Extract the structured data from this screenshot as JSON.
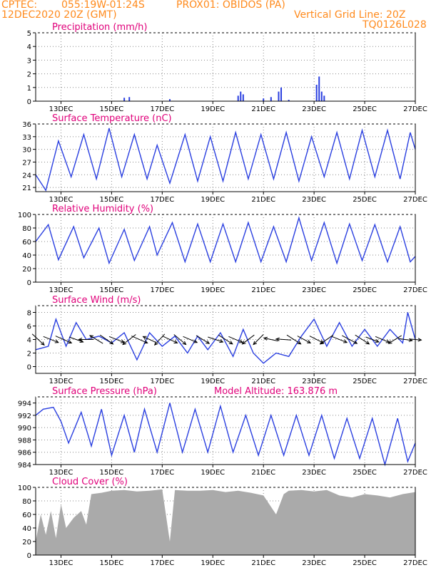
{
  "header": {
    "source": "CPTEC:",
    "coords": "055:19W-01:24S",
    "station": "PROX01: OBIDOS (PA)",
    "datetime": "12DEC2020 20Z (GMT)",
    "grid_note": "Vertical Grid Line: 20Z",
    "code": "TQ0126L028"
  },
  "colors": {
    "header": "#ff8a1c",
    "title": "#e0007a",
    "line": "#2a3fe0",
    "cloud": "#aaaaaa",
    "wind": "#000000"
  },
  "chart_data": [
    {
      "type": "bar",
      "title": "Precipitation (mm/h)",
      "x_ticks": [
        "13DEC",
        "15DEC",
        "17DEC",
        "19DEC",
        "21DEC",
        "23DEC",
        "25DEC",
        "27DEC"
      ],
      "ylim": [
        0,
        5
      ],
      "y_ticks": [
        0,
        1,
        2,
        3,
        4,
        5
      ],
      "grid": true,
      "points": [
        [
          3.5,
          0.25
        ],
        [
          3.7,
          0.3
        ],
        [
          5.3,
          0.15
        ],
        [
          8.0,
          0.4
        ],
        [
          8.1,
          0.7
        ],
        [
          8.2,
          0.5
        ],
        [
          9.0,
          0.2
        ],
        [
          9.3,
          0.3
        ],
        [
          9.6,
          0.7
        ],
        [
          9.7,
          1.0
        ],
        [
          10.0,
          0.1
        ],
        [
          11.1,
          1.2
        ],
        [
          11.2,
          1.8
        ],
        [
          11.3,
          0.7
        ],
        [
          11.4,
          0.4
        ]
      ]
    },
    {
      "type": "line",
      "title": "Surface Temperature (nC)",
      "x_ticks": [
        "13DEC",
        "15DEC",
        "17DEC",
        "19DEC",
        "21DEC",
        "23DEC",
        "25DEC",
        "27DEC"
      ],
      "ylim": [
        20,
        36
      ],
      "y_ticks": [
        21,
        24,
        27,
        30,
        33,
        36
      ],
      "grid": true,
      "points": [
        [
          0.0,
          24.0
        ],
        [
          0.4,
          20.3
        ],
        [
          0.9,
          32.0
        ],
        [
          1.4,
          23.5
        ],
        [
          1.9,
          33.5
        ],
        [
          2.4,
          23.0
        ],
        [
          2.9,
          35.0
        ],
        [
          3.4,
          23.5
        ],
        [
          3.9,
          33.5
        ],
        [
          4.4,
          23.0
        ],
        [
          4.8,
          31.0
        ],
        [
          5.3,
          22.0
        ],
        [
          5.9,
          33.5
        ],
        [
          6.4,
          22.5
        ],
        [
          6.9,
          33.0
        ],
        [
          7.4,
          22.5
        ],
        [
          7.9,
          34.0
        ],
        [
          8.4,
          23.0
        ],
        [
          8.9,
          33.5
        ],
        [
          9.4,
          23.0
        ],
        [
          9.9,
          34.0
        ],
        [
          10.4,
          22.5
        ],
        [
          10.9,
          33.0
        ],
        [
          11.4,
          23.5
        ],
        [
          11.9,
          34.0
        ],
        [
          12.4,
          23.0
        ],
        [
          12.9,
          34.5
        ],
        [
          13.4,
          23.5
        ],
        [
          13.9,
          34.5
        ],
        [
          14.4,
          23.0
        ],
        [
          14.8,
          34.0
        ],
        [
          15.0,
          30.0
        ]
      ]
    },
    {
      "type": "line",
      "title": "Relative Humidity (%)",
      "x_ticks": [
        "13DEC",
        "15DEC",
        "17DEC",
        "19DEC",
        "21DEC",
        "23DEC",
        "25DEC",
        "27DEC"
      ],
      "ylim": [
        0,
        100
      ],
      "y_ticks": [
        0,
        20,
        40,
        60,
        80,
        100
      ],
      "grid": true,
      "points": [
        [
          0.0,
          60.0
        ],
        [
          0.5,
          85.0
        ],
        [
          0.9,
          33.0
        ],
        [
          1.5,
          82.0
        ],
        [
          1.9,
          36.0
        ],
        [
          2.5,
          80.0
        ],
        [
          2.9,
          28.0
        ],
        [
          3.5,
          78.0
        ],
        [
          3.9,
          32.0
        ],
        [
          4.5,
          82.0
        ],
        [
          4.8,
          40.0
        ],
        [
          5.4,
          88.0
        ],
        [
          5.9,
          30.0
        ],
        [
          6.4,
          86.0
        ],
        [
          6.9,
          30.0
        ],
        [
          7.4,
          86.0
        ],
        [
          7.9,
          30.0
        ],
        [
          8.4,
          88.0
        ],
        [
          8.9,
          30.0
        ],
        [
          9.4,
          82.0
        ],
        [
          9.9,
          30.0
        ],
        [
          10.4,
          95.0
        ],
        [
          10.9,
          32.0
        ],
        [
          11.4,
          88.0
        ],
        [
          11.9,
          28.0
        ],
        [
          12.4,
          86.0
        ],
        [
          12.9,
          32.0
        ],
        [
          13.4,
          85.0
        ],
        [
          13.9,
          30.0
        ],
        [
          14.4,
          82.0
        ],
        [
          14.8,
          30.0
        ],
        [
          15.0,
          38.0
        ]
      ]
    },
    {
      "type": "line",
      "title": "Surface Wind (m/s)",
      "x_ticks": [
        "13DEC",
        "15DEC",
        "17DEC",
        "19DEC",
        "21DEC",
        "23DEC",
        "25DEC",
        "27DEC"
      ],
      "ylim": [
        -1,
        9
      ],
      "y_ticks": [
        0,
        2,
        4,
        6,
        8
      ],
      "grid": true,
      "points": [
        [
          0.0,
          2.5
        ],
        [
          0.5,
          3.0
        ],
        [
          0.8,
          7.0
        ],
        [
          1.2,
          3.0
        ],
        [
          1.6,
          6.5
        ],
        [
          2.0,
          4.0
        ],
        [
          2.5,
          4.5
        ],
        [
          3.0,
          3.5
        ],
        [
          3.5,
          5.0
        ],
        [
          4.0,
          1.0
        ],
        [
          4.5,
          5.0
        ],
        [
          5.0,
          3.0
        ],
        [
          5.5,
          4.5
        ],
        [
          6.0,
          2.0
        ],
        [
          6.4,
          4.5
        ],
        [
          6.8,
          2.5
        ],
        [
          7.3,
          5.0
        ],
        [
          7.8,
          1.5
        ],
        [
          8.2,
          5.5
        ],
        [
          8.6,
          2.0
        ],
        [
          9.0,
          0.5
        ],
        [
          9.5,
          2.0
        ],
        [
          10.0,
          1.5
        ],
        [
          10.5,
          4.5
        ],
        [
          11.0,
          7.0
        ],
        [
          11.5,
          3.0
        ],
        [
          12.0,
          6.5
        ],
        [
          12.5,
          3.0
        ],
        [
          13.0,
          5.5
        ],
        [
          13.5,
          3.0
        ],
        [
          14.0,
          5.5
        ],
        [
          14.5,
          3.5
        ],
        [
          14.7,
          8.0
        ],
        [
          15.0,
          4.0
        ]
      ],
      "vectors": [
        [
          0.1,
          1.2,
          -1.1
        ],
        [
          0.6,
          1.5,
          -0.6
        ],
        [
          1.1,
          1.6,
          -0.7
        ],
        [
          1.6,
          1.4,
          -0.5
        ],
        [
          2.0,
          -1.5,
          0.0
        ],
        [
          2.4,
          -1.3,
          0.8
        ],
        [
          2.8,
          1.3,
          -0.9
        ],
        [
          3.2,
          1.5,
          -0.6
        ],
        [
          3.7,
          -1.3,
          -1.0
        ],
        [
          4.1,
          1.6,
          -0.7
        ],
        [
          4.5,
          -1.3,
          0.6
        ],
        [
          4.9,
          -1.0,
          -1.1
        ],
        [
          5.3,
          1.5,
          -0.7
        ],
        [
          5.7,
          1.2,
          -1.0
        ],
        [
          6.1,
          1.4,
          -0.6
        ],
        [
          6.6,
          1.3,
          -0.8
        ],
        [
          7.1,
          1.5,
          -0.5
        ],
        [
          7.5,
          1.4,
          -0.9
        ],
        [
          7.9,
          1.4,
          -0.6
        ],
        [
          8.4,
          -1.2,
          -0.9
        ],
        [
          8.8,
          -1.0,
          -1.0
        ],
        [
          9.3,
          -1.4,
          0.3
        ],
        [
          9.8,
          -1.5,
          0.1
        ],
        [
          10.2,
          1.4,
          -0.9
        ],
        [
          10.6,
          1.3,
          -0.7
        ],
        [
          11.1,
          1.4,
          -0.7
        ],
        [
          11.5,
          -1.3,
          -0.9
        ],
        [
          12.0,
          1.5,
          -0.6
        ],
        [
          12.4,
          1.5,
          -0.8
        ],
        [
          12.9,
          1.4,
          -0.9
        ],
        [
          13.3,
          1.3,
          -0.5
        ],
        [
          13.7,
          1.4,
          -0.6
        ],
        [
          14.2,
          -1.3,
          -0.8
        ],
        [
          14.6,
          1.4,
          -0.2
        ],
        [
          15.0,
          1.2,
          -0.1
        ]
      ]
    },
    {
      "type": "line",
      "title": "Surface Pressure (hPa)",
      "annotation": "Model Altitude: 163.876 m",
      "x_ticks": [
        "13DEC",
        "15DEC",
        "17DEC",
        "19DEC",
        "21DEC",
        "23DEC",
        "25DEC",
        "27DEC"
      ],
      "ylim": [
        984,
        995
      ],
      "y_ticks": [
        984,
        986,
        988,
        990,
        992,
        994
      ],
      "grid": true,
      "points": [
        [
          0.0,
          992.0
        ],
        [
          0.3,
          993.0
        ],
        [
          0.7,
          993.3
        ],
        [
          1.0,
          991.0
        ],
        [
          1.3,
          987.5
        ],
        [
          1.8,
          992.5
        ],
        [
          2.2,
          987.0
        ],
        [
          2.6,
          993.0
        ],
        [
          3.0,
          985.5
        ],
        [
          3.5,
          992.0
        ],
        [
          3.9,
          986.0
        ],
        [
          4.3,
          993.0
        ],
        [
          4.8,
          986.0
        ],
        [
          5.3,
          994.0
        ],
        [
          5.8,
          986.0
        ],
        [
          6.3,
          993.0
        ],
        [
          6.8,
          986.0
        ],
        [
          7.3,
          993.5
        ],
        [
          7.8,
          986.0
        ],
        [
          8.3,
          992.0
        ],
        [
          8.8,
          985.5
        ],
        [
          9.3,
          992.0
        ],
        [
          9.8,
          985.5
        ],
        [
          10.3,
          992.0
        ],
        [
          10.8,
          985.5
        ],
        [
          11.3,
          992.0
        ],
        [
          11.8,
          985.0
        ],
        [
          12.3,
          991.5
        ],
        [
          12.8,
          985.0
        ],
        [
          13.3,
          991.5
        ],
        [
          13.8,
          984.0
        ],
        [
          14.3,
          991.5
        ],
        [
          14.7,
          984.5
        ],
        [
          15.0,
          987.5
        ]
      ]
    },
    {
      "type": "area",
      "title": "Cloud Cover (%)",
      "x_ticks": [
        "13DEC",
        "15DEC",
        "17DEC",
        "19DEC",
        "21DEC",
        "23DEC",
        "25DEC",
        "27DEC"
      ],
      "ylim": [
        0,
        100
      ],
      "y_ticks": [
        0,
        20,
        40,
        60,
        80,
        100
      ],
      "grid": true,
      "points": [
        [
          0.0,
          20.0
        ],
        [
          0.2,
          60.0
        ],
        [
          0.4,
          30.0
        ],
        [
          0.6,
          65.0
        ],
        [
          0.8,
          25.0
        ],
        [
          1.0,
          75.0
        ],
        [
          1.2,
          40.0
        ],
        [
          1.5,
          55.0
        ],
        [
          1.8,
          65.0
        ],
        [
          2.0,
          45.0
        ],
        [
          2.2,
          90.0
        ],
        [
          2.6,
          92.0
        ],
        [
          3.0,
          95.0
        ],
        [
          3.5,
          96.0
        ],
        [
          4.0,
          94.0
        ],
        [
          4.5,
          95.0
        ],
        [
          5.0,
          97.0
        ],
        [
          5.3,
          20.0
        ],
        [
          5.5,
          96.0
        ],
        [
          6.0,
          95.0
        ],
        [
          6.5,
          95.0
        ],
        [
          7.0,
          96.0
        ],
        [
          7.5,
          93.0
        ],
        [
          8.0,
          95.0
        ],
        [
          8.5,
          92.0
        ],
        [
          9.0,
          88.0
        ],
        [
          9.5,
          60.0
        ],
        [
          9.8,
          90.0
        ],
        [
          10.0,
          95.0
        ],
        [
          10.5,
          96.0
        ],
        [
          11.0,
          94.0
        ],
        [
          11.5,
          96.0
        ],
        [
          12.0,
          88.0
        ],
        [
          12.5,
          85.0
        ],
        [
          13.0,
          90.0
        ],
        [
          13.5,
          88.0
        ],
        [
          14.0,
          85.0
        ],
        [
          14.5,
          90.0
        ],
        [
          15.0,
          93.0
        ]
      ]
    }
  ]
}
